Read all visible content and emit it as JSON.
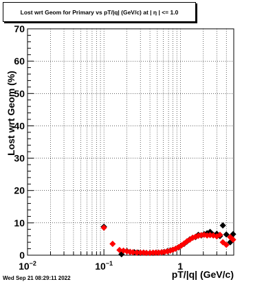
{
  "title": "Lost wrt Geom for Primary vs pT/|q| (GeV/c) at | η | <= 1.0",
  "timestamp": "Wed Sep 21 08:29:11 2022",
  "colors": {
    "primary": "#000000",
    "secondary": "#ff0000",
    "grid": "#000000",
    "background": "#ffffff"
  },
  "chart_data": {
    "type": "scatter",
    "title": "Lost wrt Geom for Primary vs pT/|q| (GeV/c) at | η | <= 1.0",
    "xlabel": "pT/|q| (GeV/c)",
    "ylabel": "Lost wrt Geom (%)",
    "xscale": "log",
    "xlim": [
      0.01,
      5
    ],
    "ylim": [
      0,
      70
    ],
    "grid": true,
    "x_tick_labels": [
      "10^-2",
      "10^-1",
      "1"
    ],
    "y_tick_labels": [
      "0",
      "10",
      "20",
      "30",
      "40",
      "50",
      "60",
      "70"
    ],
    "series": [
      {
        "marker": "diamond",
        "color": "#000000",
        "points": [
          [
            0.1,
            8.8
          ],
          [
            0.17,
            0.3
          ],
          [
            0.2,
            1.3
          ],
          [
            0.22,
            1.0
          ],
          [
            0.25,
            0.9
          ],
          [
            0.28,
            0.8
          ],
          [
            0.3,
            0.7
          ],
          [
            0.33,
            0.8
          ],
          [
            0.36,
            0.7
          ],
          [
            0.4,
            0.7
          ],
          [
            0.44,
            0.7
          ],
          [
            0.48,
            0.8
          ],
          [
            0.52,
            0.8
          ],
          [
            0.57,
            0.9
          ],
          [
            0.62,
            1.0
          ],
          [
            0.68,
            1.3
          ],
          [
            0.74,
            1.5
          ],
          [
            0.8,
            1.7
          ],
          [
            0.87,
            2.0
          ],
          [
            0.95,
            2.4
          ],
          [
            1.03,
            3.0
          ],
          [
            1.12,
            3.5
          ],
          [
            1.22,
            4.2
          ],
          [
            1.33,
            4.9
          ],
          [
            1.45,
            5.4
          ],
          [
            1.58,
            5.6
          ],
          [
            1.72,
            6.3
          ],
          [
            1.88,
            6.1
          ],
          [
            2.05,
            6.5
          ],
          [
            2.24,
            6.8
          ],
          [
            2.45,
            7.2
          ],
          [
            2.7,
            6.3
          ],
          [
            3.0,
            6.6
          ],
          [
            3.3,
            5.9
          ],
          [
            3.6,
            9.2
          ],
          [
            4.0,
            6.4
          ],
          [
            4.5,
            4.0
          ],
          [
            4.9,
            6.5
          ]
        ]
      },
      {
        "marker": "diamond",
        "color": "#ff0000",
        "points": [
          [
            0.1,
            8.5
          ],
          [
            0.13,
            3.5
          ],
          [
            0.16,
            1.6
          ],
          [
            0.18,
            1.4
          ],
          [
            0.2,
            1.2
          ],
          [
            0.22,
            1.0
          ],
          [
            0.24,
            0.9
          ],
          [
            0.27,
            0.8
          ],
          [
            0.3,
            0.8
          ],
          [
            0.33,
            0.8
          ],
          [
            0.36,
            0.7
          ],
          [
            0.4,
            0.7
          ],
          [
            0.44,
            0.8
          ],
          [
            0.48,
            0.8
          ],
          [
            0.52,
            0.8
          ],
          [
            0.57,
            0.9
          ],
          [
            0.62,
            1.0
          ],
          [
            0.68,
            1.2
          ],
          [
            0.74,
            1.4
          ],
          [
            0.8,
            1.7
          ],
          [
            0.87,
            2.0
          ],
          [
            0.95,
            2.5
          ],
          [
            1.03,
            3.0
          ],
          [
            1.12,
            3.6
          ],
          [
            1.22,
            4.3
          ],
          [
            1.33,
            4.8
          ],
          [
            1.45,
            5.4
          ],
          [
            1.58,
            5.7
          ],
          [
            1.72,
            6.0
          ],
          [
            1.88,
            6.2
          ],
          [
            2.05,
            6.3
          ],
          [
            2.24,
            6.1
          ],
          [
            2.45,
            6.2
          ],
          [
            2.7,
            6.1
          ],
          [
            3.0,
            5.8
          ],
          [
            3.3,
            6.3
          ],
          [
            3.6,
            4.0
          ],
          [
            4.0,
            3.2
          ],
          [
            4.5,
            5.6
          ],
          [
            4.9,
            4.8
          ]
        ]
      }
    ]
  }
}
